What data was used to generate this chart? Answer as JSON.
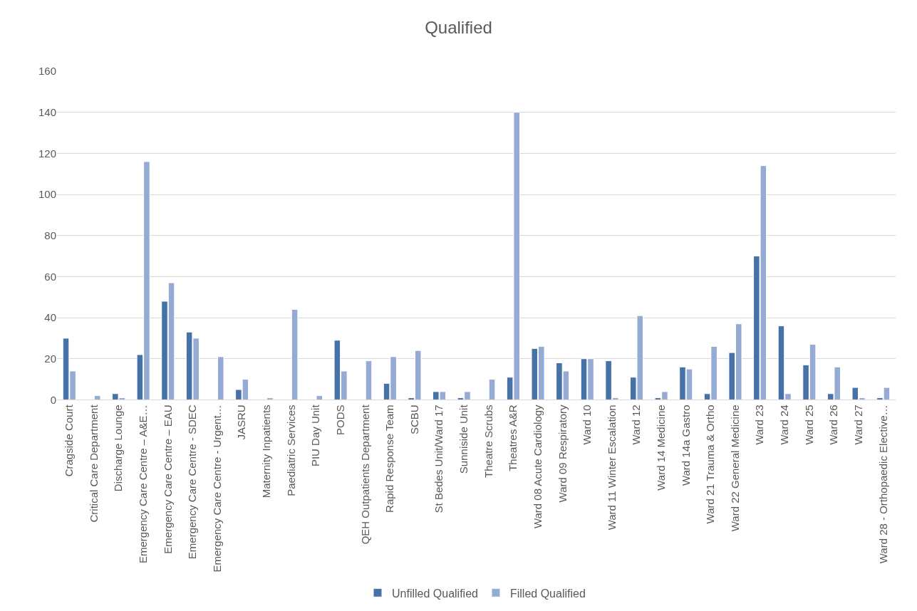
{
  "chart_data": {
    "type": "bar",
    "title": "Qualified",
    "categories": [
      "Cragside Court",
      "Critical Care Department",
      "Discharge Lounge",
      "Emergency Care Centre – A&E…",
      "Emergency Care Centre – EAU",
      "Emergency Care Centre - SDEC",
      "Emergency Care Centre - Urgent…",
      "JASRU",
      "Maternity Inpatients",
      "Paediatric Services",
      "PIU Day Unit",
      "PODS",
      "QEH Outpatients Department",
      "Rapid Response Team",
      "SCBU",
      "St Bedes Unit/Ward 17",
      "Sunniside Unit",
      "Theatre Scrubs",
      "Theatres A&R",
      "Ward 08 Acute Cardiology",
      "Ward 09 Respiratory",
      "Ward 10",
      "Ward 11 Winter Escalation",
      "Ward 12",
      "Ward 14 Medicine",
      "Ward 14a Gastro",
      "Ward 21 Trauma & Ortho",
      "Ward 22 General Medicine",
      "Ward 23",
      "Ward 24",
      "Ward 25",
      "Ward 26",
      "Ward 27",
      "Ward 28 - Orthopaedic Elective…"
    ],
    "series": [
      {
        "name": "Unfilled Qualified",
        "color": "#4672a8",
        "values": [
          30,
          null,
          3,
          22,
          48,
          33,
          null,
          5,
          null,
          null,
          null,
          29,
          null,
          8,
          1,
          4,
          1,
          null,
          11,
          25,
          18,
          20,
          19,
          11,
          1,
          16,
          3,
          23,
          70,
          36,
          17,
          3,
          6,
          1
        ]
      },
      {
        "name": "Filled Qualified",
        "color": "#95abd3",
        "values": [
          14,
          2,
          1,
          116,
          57,
          30,
          21,
          10,
          1,
          44,
          2,
          14,
          19,
          21,
          24,
          4,
          4,
          10,
          140,
          26,
          14,
          20,
          1,
          41,
          4,
          15,
          26,
          37,
          114,
          3,
          27,
          16,
          1,
          6
        ]
      }
    ],
    "ylim": [
      0,
      160
    ],
    "yticks": [
      0,
      20,
      40,
      60,
      80,
      100,
      120,
      140,
      160
    ],
    "grid": "y",
    "legend": "bottom"
  }
}
